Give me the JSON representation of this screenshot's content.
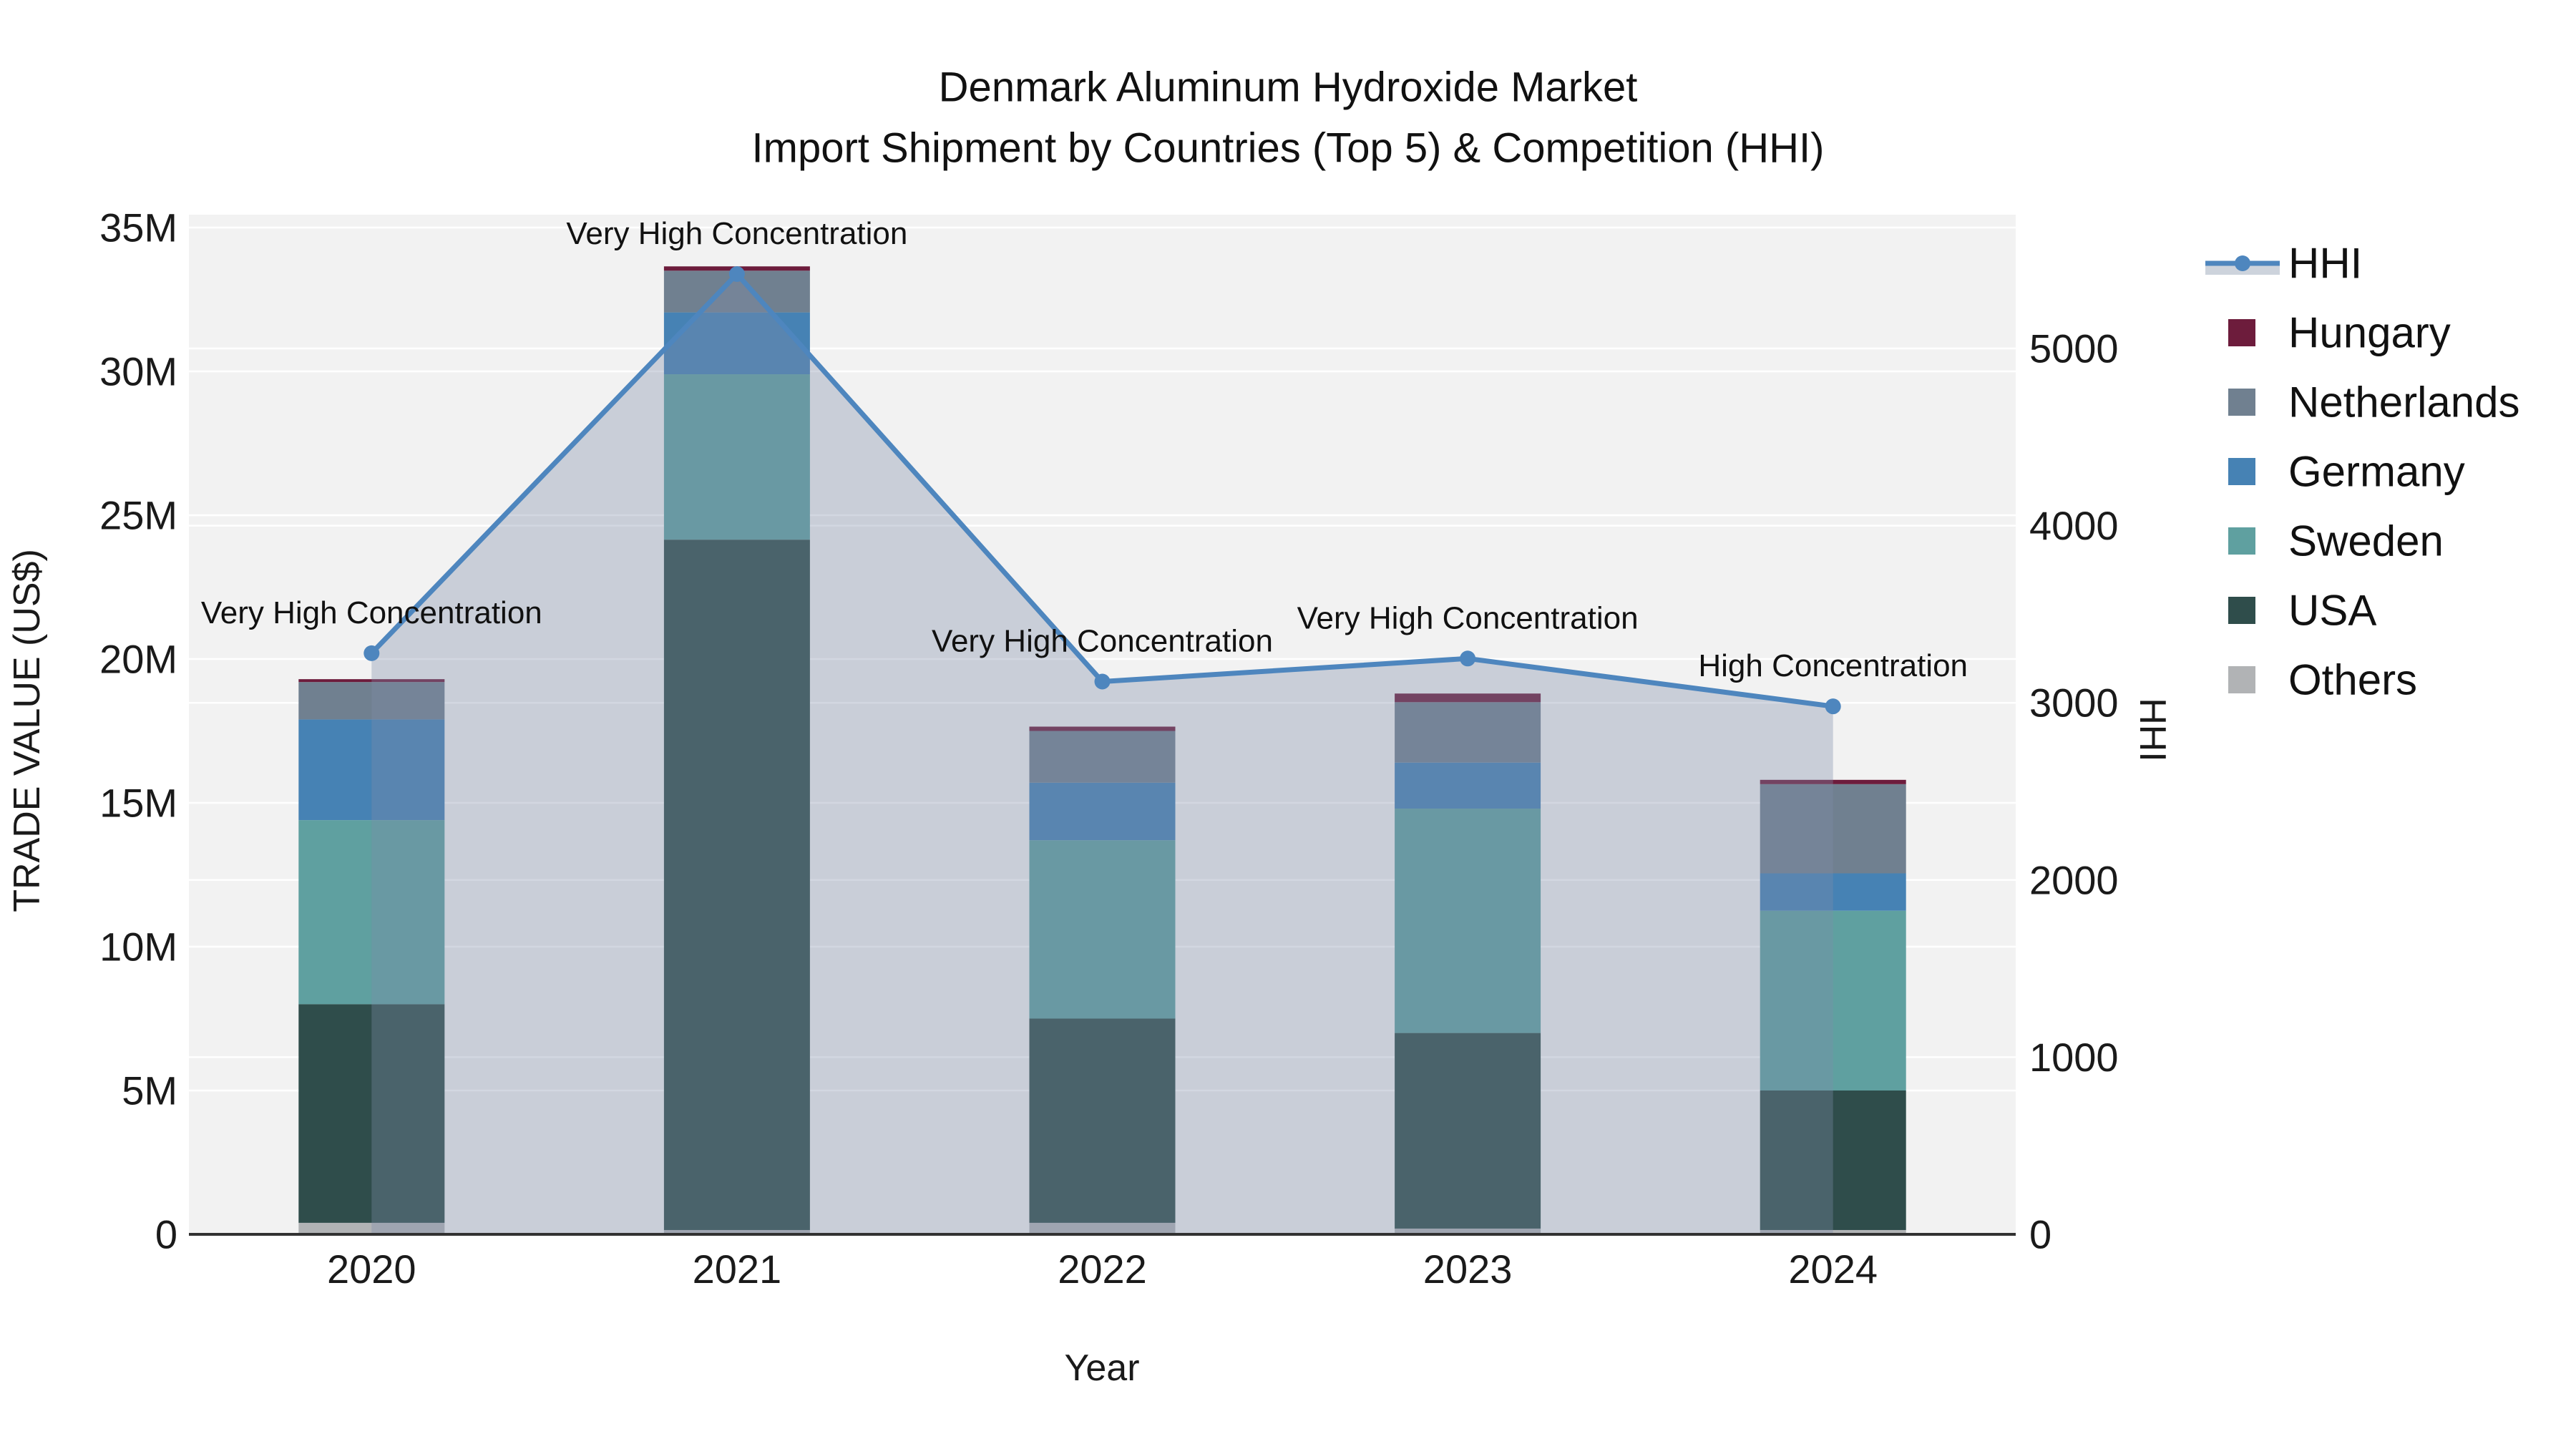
{
  "title": {
    "line1": "Denmark Aluminum Hydroxide Market",
    "line2": "Import Shipment by Countries (Top 5) & Competition (HHI)"
  },
  "x_axis": {
    "label": "Year",
    "categories": [
      "2020",
      "2021",
      "2022",
      "2023",
      "2024"
    ]
  },
  "y_left_axis": {
    "label": "TRADE VALUE (US$)",
    "ticks": [
      "0",
      "5M",
      "10M",
      "15M",
      "20M",
      "25M",
      "30M",
      "35M"
    ],
    "tick_values_musd": [
      0,
      5,
      10,
      15,
      20,
      25,
      30,
      35
    ],
    "range_musd": [
      0,
      35
    ]
  },
  "y_right_axis": {
    "label": "HHI",
    "ticks": [
      "0",
      "1000",
      "2000",
      "3000",
      "4000",
      "5000"
    ],
    "tick_values": [
      0,
      1000,
      2000,
      3000,
      4000,
      5000
    ],
    "range": [
      0,
      5000
    ]
  },
  "legend": {
    "items": [
      {
        "label": "HHI",
        "type": "line",
        "color": "#4E86BE",
        "band_color": "#CDD3DC"
      },
      {
        "label": "Hungary",
        "type": "swatch",
        "color": "#6D1C3C"
      },
      {
        "label": "Netherlands",
        "type": "swatch",
        "color": "#708090"
      },
      {
        "label": "Germany",
        "type": "swatch",
        "color": "#4682B4"
      },
      {
        "label": "Sweden",
        "type": "swatch",
        "color": "#5FA0A0"
      },
      {
        "label": "USA",
        "type": "swatch",
        "color": "#2F4D4B"
      },
      {
        "label": "Others",
        "type": "swatch",
        "color": "#B1B3B5"
      }
    ]
  },
  "colors": {
    "plot_background": "#F2F2F2",
    "gridline": "#FFFFFF",
    "axis_line": "#323232",
    "hhi_line": "#4E86BE",
    "hhi_area_fill": "rgba(125,140,170,0.35)"
  },
  "chart_data": {
    "type": "bar",
    "subtype": "stacked-bars-with-secondary-line",
    "title": "Denmark Aluminum Hydroxide Market — Import Shipment by Countries (Top 5) & Competition (HHI)",
    "xlabel": "Year",
    "ylabel_left": "TRADE VALUE (US$)",
    "ylabel_right": "HHI",
    "ylim_left_musd": [
      0,
      35
    ],
    "ylim_right_hhi": [
      0,
      5000
    ],
    "grid": true,
    "legend_position": "right",
    "categories": [
      "2020",
      "2021",
      "2022",
      "2023",
      "2024"
    ],
    "series": [
      {
        "name": "Hungary",
        "color": "#6D1C3C",
        "values_millions_usd": [
          0.1,
          0.15,
          0.15,
          0.3,
          0.15
        ]
      },
      {
        "name": "Netherlands",
        "color": "#708090",
        "values_millions_usd": [
          1.3,
          1.45,
          1.8,
          2.1,
          3.1
        ]
      },
      {
        "name": "Germany",
        "color": "#4682B4",
        "values_millions_usd": [
          3.5,
          2.15,
          2.0,
          1.6,
          1.3
        ]
      },
      {
        "name": "Sweden",
        "color": "#5FA0A0",
        "values_millions_usd": [
          6.4,
          5.75,
          6.2,
          7.8,
          6.25
        ]
      },
      {
        "name": "USA",
        "color": "#2F4D4B",
        "values_millions_usd": [
          7.6,
          24.0,
          7.1,
          6.8,
          4.85
        ]
      },
      {
        "name": "Others",
        "color": "#B1B3B5",
        "values_millions_usd": [
          0.4,
          0.15,
          0.4,
          0.2,
          0.15
        ]
      }
    ],
    "stack_order_bottom_to_top": [
      "Others",
      "USA",
      "Sweden",
      "Germany",
      "Netherlands",
      "Hungary"
    ],
    "totals_millions_usd": [
      19.3,
      33.65,
      17.65,
      18.8,
      15.8
    ],
    "hhi_line": {
      "name": "HHI",
      "color": "#4E86BE",
      "area_fill": "rgba(125,140,170,0.35)",
      "values": [
        3280,
        5420,
        3120,
        3250,
        2980
      ]
    },
    "annotations": [
      {
        "category": "2020",
        "text": "Very High Concentration"
      },
      {
        "category": "2021",
        "text": "Very High Concentration"
      },
      {
        "category": "2022",
        "text": "Very High Concentration"
      },
      {
        "category": "2023",
        "text": "Very High Concentration"
      },
      {
        "category": "2024",
        "text": "High Concentration"
      }
    ]
  }
}
